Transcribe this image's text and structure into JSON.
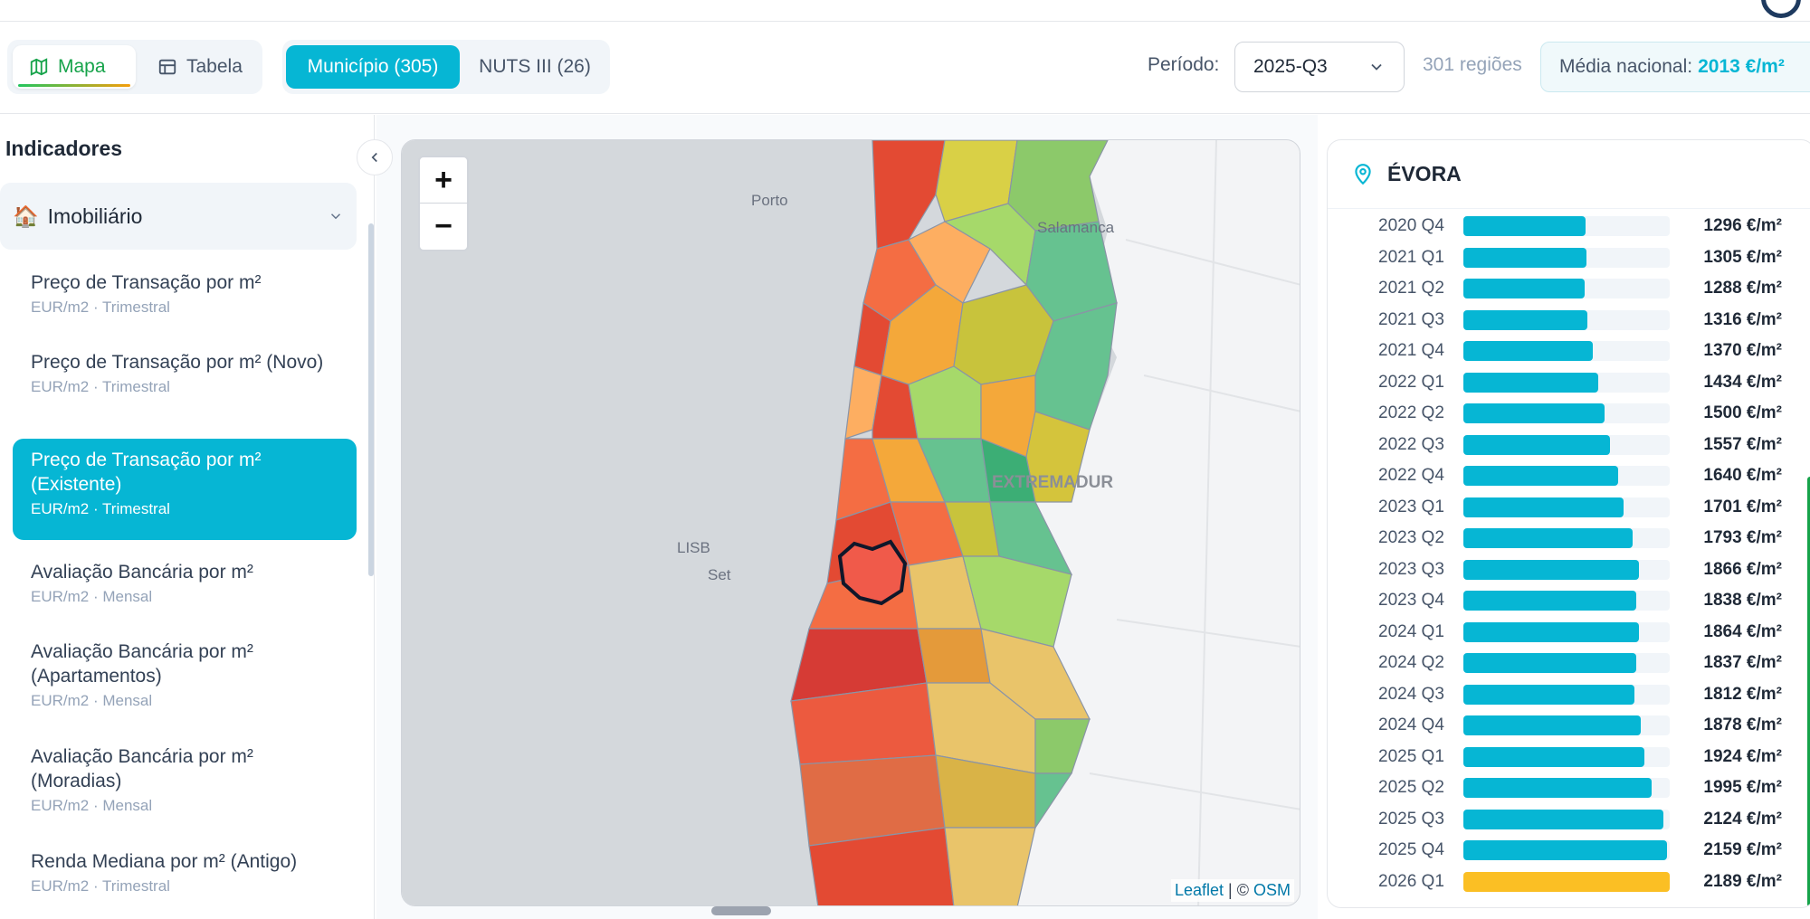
{
  "toolbar": {
    "view_map": "Mapa",
    "view_table": "Tabela",
    "level_municipio": "Município (305)",
    "level_nuts": "NUTS III (26)",
    "periodo_label": "Período:",
    "periodo_value": "2025-Q3",
    "regioes": "301 regiões",
    "media_label": "Média nacional:",
    "media_value": "2013 €/m²"
  },
  "sidebar": {
    "title": "Indicadores",
    "category_icon": "🏠",
    "category": "Imobiliário",
    "items": [
      {
        "title": "Preço de Transação por m²",
        "sub": "EUR/m2 · Trimestral"
      },
      {
        "title": "Preço de Transação por m² (Novo)",
        "sub": "EUR/m2 · Trimestral"
      },
      {
        "title": "Preço de Transação por m² (Existente)",
        "sub": "EUR/m2 · Trimestral",
        "active": true
      },
      {
        "title": "Avaliação Bancária por m²",
        "sub": "EUR/m2 · Mensal"
      },
      {
        "title": "Avaliação Bancária por m² (Apartamentos)",
        "sub": "EUR/m2 · Mensal"
      },
      {
        "title": "Avaliação Bancária por m² (Moradias)",
        "sub": "EUR/m2 · Mensal"
      },
      {
        "title": "Renda Mediana por m² (Antigo)",
        "sub": "EUR/m2 · Trimestral"
      }
    ]
  },
  "map": {
    "labels": [
      "Porto",
      "Salamanca",
      "EXTREMADUR",
      "LISB",
      "Set"
    ],
    "attribution_leaflet": "Leaflet",
    "attribution_sep": " | © ",
    "attribution_osm": "OSM",
    "zoom_in": "+",
    "zoom_out": "−"
  },
  "panel": {
    "region": "ÉVORA",
    "scale_max": 2189,
    "series": [
      {
        "period": "2020 Q4",
        "value": 1296,
        "label": "1296 €/m²"
      },
      {
        "period": "2021 Q1",
        "value": 1305,
        "label": "1305 €/m²"
      },
      {
        "period": "2021 Q2",
        "value": 1288,
        "label": "1288 €/m²"
      },
      {
        "period": "2021 Q3",
        "value": 1316,
        "label": "1316 €/m²"
      },
      {
        "period": "2021 Q4",
        "value": 1370,
        "label": "1370 €/m²"
      },
      {
        "period": "2022 Q1",
        "value": 1434,
        "label": "1434 €/m²"
      },
      {
        "period": "2022 Q2",
        "value": 1500,
        "label": "1500 €/m²"
      },
      {
        "period": "2022 Q3",
        "value": 1557,
        "label": "1557 €/m²"
      },
      {
        "period": "2022 Q4",
        "value": 1640,
        "label": "1640 €/m²"
      },
      {
        "period": "2023 Q1",
        "value": 1701,
        "label": "1701 €/m²"
      },
      {
        "period": "2023 Q2",
        "value": 1793,
        "label": "1793 €/m²"
      },
      {
        "period": "2023 Q3",
        "value": 1866,
        "label": "1866 €/m²"
      },
      {
        "period": "2023 Q4",
        "value": 1838,
        "label": "1838 €/m²"
      },
      {
        "period": "2024 Q1",
        "value": 1864,
        "label": "1864 €/m²"
      },
      {
        "period": "2024 Q2",
        "value": 1837,
        "label": "1837 €/m²"
      },
      {
        "period": "2024 Q3",
        "value": 1812,
        "label": "1812 €/m²"
      },
      {
        "period": "2024 Q4",
        "value": 1878,
        "label": "1878 €/m²"
      },
      {
        "period": "2025 Q1",
        "value": 1924,
        "label": "1924 €/m²"
      },
      {
        "period": "2025 Q2",
        "value": 1995,
        "label": "1995 €/m²"
      },
      {
        "period": "2025 Q3",
        "value": 2124,
        "label": "2124 €/m²"
      },
      {
        "period": "2025 Q4",
        "value": 2159,
        "label": "2159 €/m²"
      },
      {
        "period": "2026 Q1",
        "value": 2189,
        "label": "2189 €/m²",
        "forecast": true
      }
    ]
  },
  "colors": {
    "accent": "#06b6d4",
    "active_green": "#16a34a",
    "forecast": "#fbbf24",
    "selected_region": "#ef4444"
  },
  "icons": {
    "view_map": "map-icon",
    "view_table": "table-icon",
    "select": "chevron-down-icon",
    "collapse": "chevron-left-icon",
    "region": "map-pin-icon"
  }
}
